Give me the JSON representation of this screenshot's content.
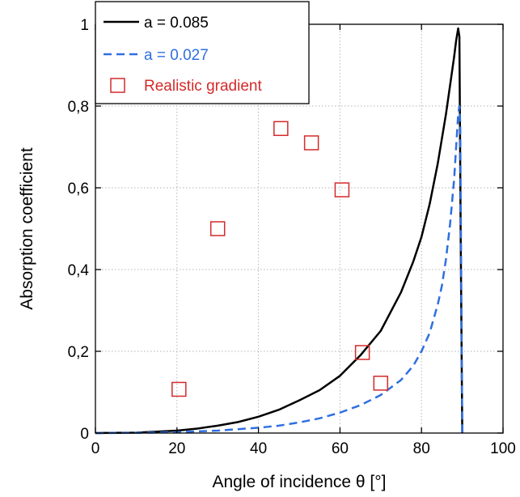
{
  "chart_data": {
    "type": "line",
    "xlabel": "Angle of incidence θ [°]",
    "ylabel": "Absorption coefficient",
    "xlim": [
      0,
      100
    ],
    "ylim": [
      0,
      1
    ],
    "x_ticks": [
      0,
      20,
      40,
      60,
      80,
      100
    ],
    "x_tick_labels": [
      "0",
      "20",
      "40",
      "60",
      "80",
      "100"
    ],
    "y_ticks": [
      0,
      0.2,
      0.4,
      0.6,
      0.8,
      1
    ],
    "y_tick_labels": [
      "0",
      "0,2",
      "0,4",
      "0,6",
      "0,8",
      "1"
    ],
    "grid": true,
    "legend_position": "top-left",
    "series": [
      {
        "name": "a = 0.085",
        "style": "solid",
        "color": "#000000",
        "x": [
          0,
          10,
          20,
          25,
          30,
          35,
          40,
          45,
          50,
          55,
          60,
          65,
          70,
          75,
          78,
          80,
          82,
          84,
          86,
          87,
          88,
          88.5,
          89,
          89.3,
          89.6,
          90
        ],
        "y": [
          0,
          0.001,
          0.006,
          0.011,
          0.018,
          0.027,
          0.04,
          0.057,
          0.08,
          0.105,
          0.14,
          0.19,
          0.25,
          0.345,
          0.42,
          0.48,
          0.56,
          0.66,
          0.78,
          0.85,
          0.92,
          0.96,
          0.99,
          0.97,
          0.5,
          0
        ]
      },
      {
        "name": "a = 0.027",
        "style": "dashed",
        "color": "#2f6fe0",
        "x": [
          0,
          10,
          20,
          30,
          40,
          45,
          50,
          55,
          60,
          65,
          70,
          75,
          78,
          80,
          82,
          84,
          85,
          86,
          87,
          88,
          88.5,
          89,
          89.3,
          89.5,
          89.8,
          90
        ],
        "y": [
          0,
          0.0005,
          0.002,
          0.006,
          0.013,
          0.018,
          0.026,
          0.036,
          0.05,
          0.068,
          0.093,
          0.13,
          0.165,
          0.2,
          0.245,
          0.315,
          0.36,
          0.425,
          0.51,
          0.62,
          0.7,
          0.78,
          0.8,
          0.76,
          0.3,
          0
        ]
      },
      {
        "name": "Realistic gradient",
        "style": "markers",
        "marker": "square",
        "color": "#d42a2a",
        "x": [
          20.5,
          30,
          45.5,
          53,
          60.5,
          65.5,
          70
        ],
        "y": [
          0.107,
          0.5,
          0.745,
          0.71,
          0.595,
          0.197,
          0.122
        ]
      }
    ]
  }
}
